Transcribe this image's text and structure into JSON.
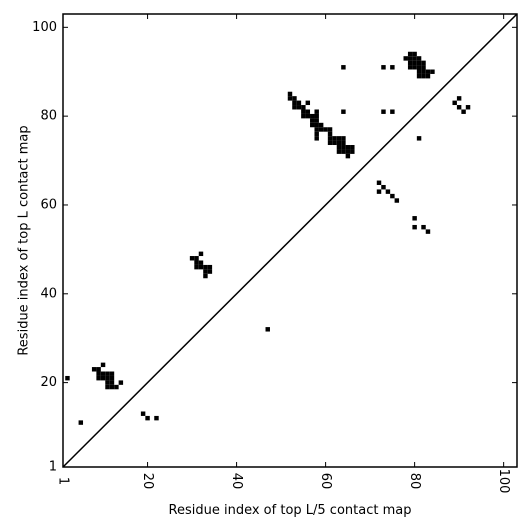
{
  "chart_data": {
    "type": "scatter",
    "title": "",
    "xlabel": "Residue index of top L/5 contact map",
    "ylabel": "Residue index of top L contact map",
    "xlim": [
      1,
      103
    ],
    "ylim": [
      1,
      103
    ],
    "xticks": [
      1,
      20,
      40,
      60,
      80,
      100
    ],
    "yticks": [
      1,
      20,
      40,
      60,
      80,
      100
    ],
    "x_tick_labels": [
      "1",
      "20",
      "40",
      "60",
      "80",
      "100"
    ],
    "y_tick_labels": [
      "1",
      "20",
      "40",
      "60",
      "80",
      "100"
    ],
    "x_tick_rotation_deg": 90,
    "grid": false,
    "diagonal": {
      "from": [
        1,
        1
      ],
      "to": [
        103,
        103
      ]
    },
    "cell_color": "#000000",
    "upper_triangle_points": [
      [
        30,
        48
      ],
      [
        31,
        48
      ],
      [
        31,
        47
      ],
      [
        32,
        47
      ],
      [
        31,
        46
      ],
      [
        32,
        46
      ],
      [
        32,
        49
      ],
      [
        33,
        46
      ],
      [
        34,
        46
      ],
      [
        33,
        45
      ],
      [
        34,
        45
      ],
      [
        33,
        44
      ],
      [
        47,
        32
      ],
      [
        52,
        85
      ],
      [
        52,
        84
      ],
      [
        53,
        84
      ],
      [
        53,
        83
      ],
      [
        53,
        82
      ],
      [
        54,
        83
      ],
      [
        54,
        82
      ],
      [
        55,
        82
      ],
      [
        55,
        81
      ],
      [
        55,
        80
      ],
      [
        56,
        81
      ],
      [
        56,
        80
      ],
      [
        56,
        83
      ],
      [
        57,
        80
      ],
      [
        57,
        79
      ],
      [
        57,
        78
      ],
      [
        58,
        81
      ],
      [
        58,
        80
      ],
      [
        58,
        79
      ],
      [
        58,
        78
      ],
      [
        58,
        77
      ],
      [
        58,
        76
      ],
      [
        58,
        75
      ],
      [
        59,
        78
      ],
      [
        59,
        77
      ],
      [
        60,
        77
      ],
      [
        61,
        77
      ],
      [
        61,
        76
      ],
      [
        61,
        75
      ],
      [
        61,
        74
      ],
      [
        62,
        75
      ],
      [
        62,
        74
      ],
      [
        63,
        75
      ],
      [
        63,
        74
      ],
      [
        63,
        73
      ],
      [
        63,
        72
      ],
      [
        64,
        75
      ],
      [
        64,
        74
      ],
      [
        64,
        73
      ],
      [
        64,
        72
      ],
      [
        65,
        73
      ],
      [
        65,
        72
      ],
      [
        65,
        71
      ],
      [
        66,
        73
      ],
      [
        66,
        72
      ],
      [
        64,
        91
      ],
      [
        64,
        81
      ],
      [
        73,
        91
      ],
      [
        73,
        81
      ],
      [
        75,
        91
      ],
      [
        75,
        81
      ],
      [
        78,
        93
      ],
      [
        79,
        94
      ],
      [
        80,
        94
      ],
      [
        79,
        93
      ],
      [
        80,
        93
      ],
      [
        81,
        93
      ],
      [
        79,
        92
      ],
      [
        80,
        92
      ],
      [
        81,
        92
      ],
      [
        82,
        92
      ],
      [
        79,
        91
      ],
      [
        80,
        91
      ],
      [
        81,
        91
      ],
      [
        82,
        91
      ],
      [
        81,
        90
      ],
      [
        82,
        90
      ],
      [
        83,
        90
      ],
      [
        84,
        90
      ],
      [
        81,
        89
      ],
      [
        82,
        89
      ],
      [
        83,
        89
      ],
      [
        81,
        75
      ],
      [
        72,
        65
      ],
      [
        72,
        63
      ],
      [
        73,
        64
      ],
      [
        74,
        63
      ],
      [
        75,
        62
      ],
      [
        76,
        61
      ],
      [
        80,
        57
      ],
      [
        80,
        55
      ],
      [
        82,
        55
      ],
      [
        83,
        54
      ],
      [
        89,
        83
      ],
      [
        90,
        84
      ],
      [
        90,
        82
      ],
      [
        91,
        81
      ],
      [
        92,
        82
      ]
    ],
    "lower_triangle_points": [
      [
        2,
        21
      ],
      [
        5,
        11
      ],
      [
        8,
        23
      ],
      [
        9,
        23
      ],
      [
        10,
        24
      ],
      [
        9,
        22
      ],
      [
        10,
        22
      ],
      [
        11,
        22
      ],
      [
        12,
        22
      ],
      [
        9,
        21
      ],
      [
        10,
        21
      ],
      [
        11,
        21
      ],
      [
        12,
        21
      ],
      [
        11,
        20
      ],
      [
        12,
        20
      ],
      [
        11,
        19
      ],
      [
        12,
        19
      ],
      [
        13,
        19
      ],
      [
        14,
        20
      ],
      [
        19,
        13
      ],
      [
        20,
        12
      ],
      [
        22,
        12
      ]
    ]
  }
}
